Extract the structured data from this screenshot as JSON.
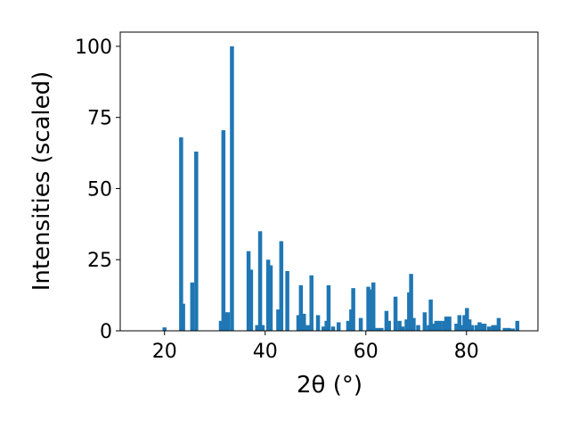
{
  "chart_data": {
    "type": "bar",
    "x_label": "2θ (°)",
    "y_label": "Intensities (scaled)",
    "color": "#1f77b4",
    "x": [
      20.0,
      23.3,
      23.7,
      25.5,
      26.3,
      31.2,
      31.7,
      32.2,
      32.6,
      33.4,
      36.7,
      37.2,
      38.4,
      39.0,
      39.5,
      40.6,
      41.1,
      42.6,
      43.2,
      44.4,
      46.6,
      47.1,
      47.7,
      48.5,
      49.2,
      50.5,
      51.6,
      52.2,
      52.6,
      53.5,
      54.6,
      56.5,
      57.1,
      57.5,
      59.0,
      60.5,
      61.0,
      61.5,
      62.3,
      63.1,
      64.1,
      64.6,
      65.9,
      66.7,
      67.3,
      68.1,
      68.6,
      69.0,
      69.5,
      70.4,
      71.7,
      72.5,
      72.9,
      73.5,
      74.0,
      74.7,
      75.5,
      76.0,
      76.6,
      78.0,
      78.6,
      79.1,
      79.6,
      80.1,
      80.6,
      81.1,
      82.0,
      82.6,
      83.1,
      83.6,
      84.5,
      85.3,
      85.9,
      86.4,
      87.6,
      88.4,
      89.2,
      90.1
    ],
    "values": [
      1.2,
      68,
      9.5,
      17,
      63,
      3.5,
      70.5,
      6.5,
      6.5,
      100,
      28,
      21.5,
      2,
      35,
      2,
      25,
      23,
      7.5,
      31.5,
      21,
      5.5,
      16,
      6,
      2,
      19.5,
      5.5,
      1.5,
      3.5,
      16,
      1.5,
      3,
      3.5,
      7.5,
      15,
      4.5,
      15.5,
      14.5,
      17,
      1,
      1,
      7,
      3.5,
      12,
      3.5,
      1.5,
      4,
      13.5,
      20,
      4.5,
      2,
      6.5,
      2,
      11,
      2.5,
      3.5,
      3.5,
      3.5,
      5,
      5,
      2.5,
      5.5,
      2,
      5.5,
      8,
      4,
      2,
      2,
      3,
      2.5,
      2.5,
      1.5,
      2,
      2,
      4.5,
      1,
      1,
      0.8,
      3.5
    ],
    "xlim": [
      11.2,
      94.2
    ],
    "ylim": [
      0,
      105
    ],
    "xticks": [
      20,
      40,
      60,
      80
    ],
    "yticks": [
      0,
      25,
      50,
      75,
      100
    ]
  }
}
